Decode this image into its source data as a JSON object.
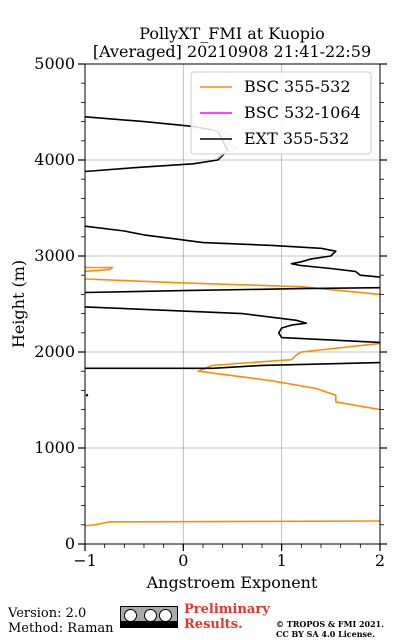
{
  "chart_data": {
    "type": "line",
    "title": "PollyXT_FMI at Kuopio",
    "subtitle": "[Averaged] 20210908 21:41-22:59",
    "xlabel": "Angstroem Exponent",
    "ylabel": "Height (m)",
    "xlim": [
      -1,
      2
    ],
    "ylim": [
      0,
      5000
    ],
    "xticks": [
      -1,
      0,
      1,
      2
    ],
    "yticks": [
      0,
      1000,
      2000,
      3000,
      4000,
      5000
    ],
    "grid": true,
    "legend_position": "top-right",
    "series": [
      {
        "name": "BSC 355-532",
        "color": "#ff8c00",
        "points": [
          [
            -1.1,
            180
          ],
          [
            -0.9,
            200
          ],
          [
            -0.75,
            230
          ],
          [
            2.0,
            240
          ],
          [
            null,
            null
          ],
          [
            2.0,
            1400
          ],
          [
            1.55,
            1480
          ],
          [
            1.55,
            1550
          ],
          [
            1.35,
            1620
          ],
          [
            0.9,
            1700
          ],
          [
            0.3,
            1780
          ],
          [
            0.15,
            1800
          ],
          [
            0.3,
            1860
          ],
          [
            0.55,
            1880
          ],
          [
            1.1,
            1920
          ],
          [
            1.15,
            1970
          ],
          [
            1.2,
            2000
          ],
          [
            2.0,
            2090
          ],
          [
            null,
            null
          ],
          [
            2.0,
            2600
          ],
          [
            1.2,
            2680
          ],
          [
            0.0,
            2720
          ],
          [
            -1.0,
            2760
          ],
          [
            null,
            null
          ],
          [
            -1.0,
            2840
          ],
          [
            -0.75,
            2860
          ],
          [
            -0.72,
            2880
          ],
          [
            -1.0,
            2880
          ]
        ]
      },
      {
        "name": "BSC 532-1064",
        "color": "#ff00ff",
        "points": []
      },
      {
        "name": "EXT 355-532",
        "color": "#000000",
        "points": [
          [
            -1.0,
            1830
          ],
          [
            0.3,
            1830
          ],
          [
            0.8,
            1860
          ],
          [
            2.0,
            1890
          ],
          [
            null,
            null
          ],
          [
            2.0,
            2100
          ],
          [
            1.0,
            2150
          ],
          [
            0.97,
            2200
          ],
          [
            1.0,
            2250
          ],
          [
            1.1,
            2280
          ],
          [
            1.25,
            2300
          ],
          [
            1.15,
            2330
          ],
          [
            0.6,
            2400
          ],
          [
            -1.0,
            2470
          ],
          [
            null,
            null
          ],
          [
            -1.0,
            2620
          ],
          [
            0.0,
            2640
          ],
          [
            1.2,
            2660
          ],
          [
            2.0,
            2670
          ],
          [
            null,
            null
          ],
          [
            2.0,
            2780
          ],
          [
            1.8,
            2800
          ],
          [
            1.75,
            2840
          ],
          [
            1.5,
            2870
          ],
          [
            1.2,
            2900
          ],
          [
            1.1,
            2920
          ],
          [
            1.2,
            2940
          ],
          [
            1.3,
            2970
          ],
          [
            1.5,
            3000
          ],
          [
            1.55,
            3050
          ],
          [
            1.4,
            3080
          ],
          [
            0.9,
            3110
          ],
          [
            0.2,
            3140
          ],
          [
            -0.1,
            3180
          ],
          [
            -0.4,
            3220
          ],
          [
            -0.6,
            3260
          ],
          [
            -1.0,
            3310
          ],
          [
            null,
            null
          ],
          [
            -1.0,
            3880
          ],
          [
            -0.5,
            3920
          ],
          [
            0.1,
            3960
          ],
          [
            0.35,
            4000
          ],
          [
            0.45,
            4100
          ],
          [
            0.4,
            4200
          ],
          [
            0.35,
            4300
          ],
          [
            0.1,
            4350
          ],
          [
            -0.4,
            4400
          ],
          [
            -1.0,
            4450
          ]
        ]
      },
      {
        "name": "",
        "color": "#c8c8c8",
        "points": [
          [
            0.35,
            4020
          ],
          [
            0.42,
            4080
          ],
          [
            0.55,
            4120
          ],
          [
            0.45,
            4170
          ],
          [
            0.5,
            4230
          ],
          [
            0.45,
            4280
          ],
          [
            0.3,
            4320
          ]
        ]
      }
    ]
  },
  "footer": {
    "version": "Version: 2.0",
    "method": "Method: Raman",
    "preliminary_line1": "Preliminary",
    "preliminary_line2": "Results.",
    "copyright_line1": "© TROPOS & FMI 2021.",
    "copyright_line2": "CC BY SA 4.0 License."
  }
}
